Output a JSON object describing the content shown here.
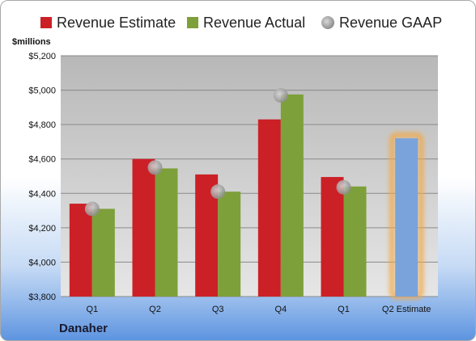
{
  "company": "Danaher",
  "chart_data": {
    "type": "bar",
    "ylabel": "$millions",
    "ylim": [
      3800,
      5200
    ],
    "yticks": [
      3800,
      4000,
      4200,
      4400,
      4600,
      4800,
      5000,
      5200
    ],
    "ytick_labels": [
      "$3,800",
      "$4,000",
      "$4,200",
      "$4,400",
      "$4,600",
      "$4,800",
      "$5,000",
      "$5,200"
    ],
    "categories": [
      "Q1",
      "Q2",
      "Q3",
      "Q4",
      "Q1",
      "Q2 Estimate"
    ],
    "grid": true,
    "legend_position": "top",
    "series": [
      {
        "name": "Revenue Estimate",
        "type": "bar",
        "color": "#cc2027",
        "values": [
          4340,
          4600,
          4510,
          4830,
          4495,
          null
        ]
      },
      {
        "name": "Revenue Actual",
        "type": "bar",
        "color": "#7ea03a",
        "values": [
          4310,
          4545,
          4410,
          4975,
          4440,
          4720
        ]
      },
      {
        "name": "Revenue GAAP",
        "type": "marker",
        "color": "#a9a9a9",
        "values": [
          4310,
          4550,
          4410,
          4970,
          4435,
          null
        ]
      }
    ],
    "highlight": {
      "category_index": 5,
      "color": "#7aa3dc",
      "glow": "#f4a742"
    }
  }
}
